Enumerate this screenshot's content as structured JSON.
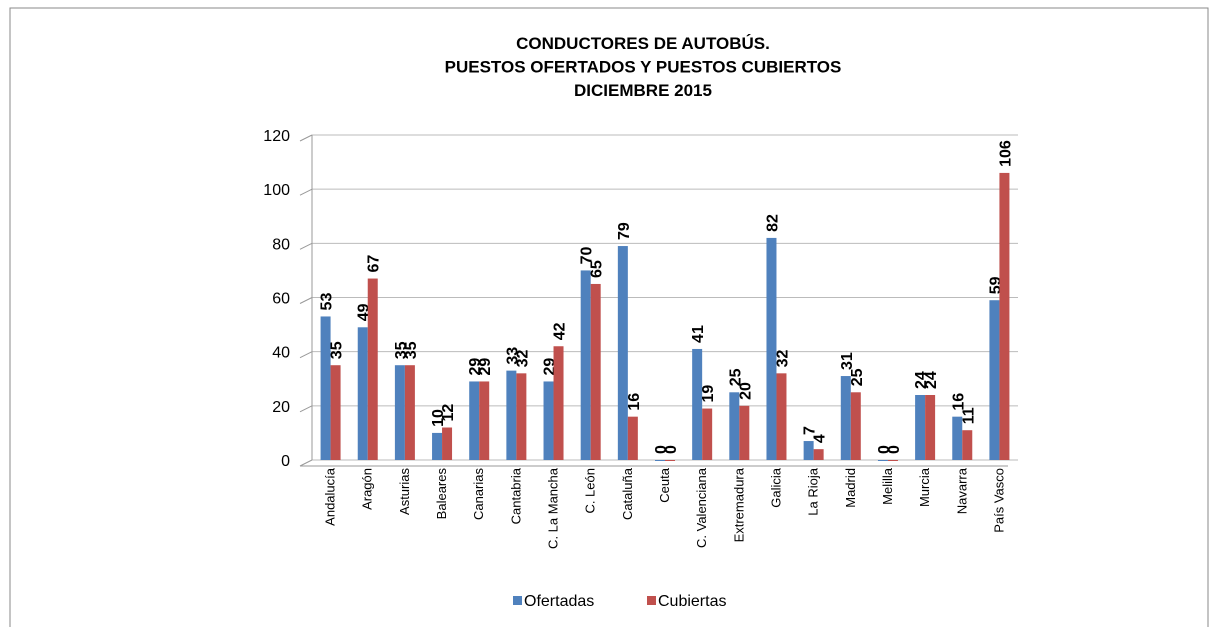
{
  "chart_data": {
    "type": "bar",
    "title": [
      "CONDUCTORES DE AUTOBÚS.",
      "PUESTOS OFERTADOS Y PUESTOS CUBIERTOS",
      "DICIEMBRE 2015"
    ],
    "categories": [
      "Andalucía",
      "Aragón",
      "Asturias",
      "Baleares",
      "Canarias",
      "Cantabria",
      "C. La Mancha",
      "C. León",
      "Cataluña",
      "Ceuta",
      "C. Valenciana",
      "Extremadura",
      "Galicia",
      "La Rioja",
      "Madrid",
      "Melilla",
      "Murcia",
      "Navarra",
      "País Vasco"
    ],
    "series": [
      {
        "name": "Ofertadas",
        "color": "#4f81bd",
        "values": [
          53,
          49,
          35,
          10,
          29,
          33,
          29,
          70,
          79,
          0,
          41,
          25,
          82,
          7,
          31,
          0,
          24,
          16,
          59
        ]
      },
      {
        "name": "Cubiertas",
        "color": "#c0504d",
        "values": [
          35,
          67,
          35,
          12,
          29,
          32,
          42,
          65,
          16,
          0,
          19,
          20,
          32,
          4,
          25,
          0,
          24,
          11,
          106
        ]
      }
    ],
    "ylim": [
      0,
      120
    ],
    "yticks": [
      0,
      20,
      40,
      60,
      80,
      100,
      120
    ],
    "grid": true,
    "legend": "bottom"
  }
}
